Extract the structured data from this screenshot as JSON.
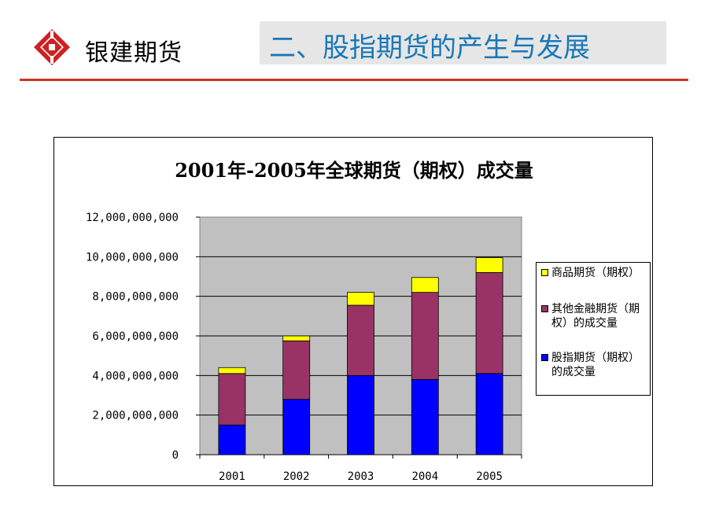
{
  "header": {
    "company_name": "银建期货",
    "slide_title": "二、股指期货的产生与发展"
  },
  "icons": {
    "logo": "yinjian-logo-icon"
  },
  "colors": {
    "accent_red": "#cc3322",
    "title_blue": "#1878b8",
    "title_box_bg": "#e6e6e6",
    "plot_bg": "#c0c0c0",
    "commodity": "#ffff00",
    "other_financial": "#993366",
    "stock_index": "#0000ff"
  },
  "chart_data": {
    "type": "bar",
    "stacked": true,
    "title": "2001年-2005年全球期货（期权）成交量",
    "categories": [
      "2001",
      "2002",
      "2003",
      "2004",
      "2005"
    ],
    "ylim": [
      0,
      12000000000
    ],
    "yticks": [
      "0",
      "2,000,000,000",
      "4,000,000,000",
      "6,000,000,000",
      "8,000,000,000",
      "10,000,000,000",
      "12,000,000,000"
    ],
    "grid": true,
    "legend_position": "right",
    "series": [
      {
        "name": "股指期货（期权）的成交量",
        "color": "#0000ff",
        "values": [
          1500000000,
          2800000000,
          4000000000,
          3800000000,
          4100000000
        ]
      },
      {
        "name": "其他金融期货（期权）的成交量",
        "color": "#993366",
        "values": [
          2600000000,
          2950000000,
          3550000000,
          4400000000,
          5100000000
        ]
      },
      {
        "name": "商品期货（期权）",
        "color": "#ffff00",
        "values": [
          300000000,
          250000000,
          650000000,
          750000000,
          750000000
        ]
      }
    ],
    "legend": [
      {
        "label": "商品期货（期权）",
        "color": "#ffff00"
      },
      {
        "label": "其他金融期货（期权）的成交量",
        "color": "#993366"
      },
      {
        "label": "股指期货（期权）的成交量",
        "color": "#0000ff"
      }
    ]
  }
}
